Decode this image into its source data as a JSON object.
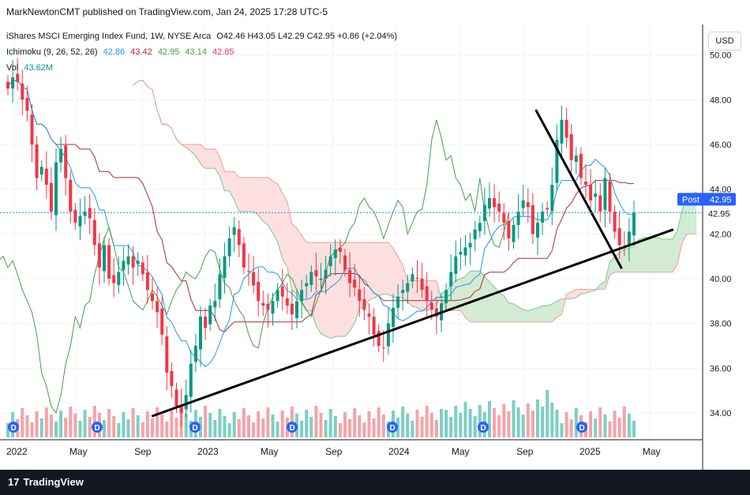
{
  "header": {
    "publisher_line": "MarkNewtonCMT published on TradingView.com, Jan 24, 2025 17:28 UTC-5"
  },
  "legend": {
    "symbol": "iShares MSCI Emerging Index Fund, 1W, NYSE Arca",
    "ohlc": "O42.46 H43.05 L42.29 C42.95 +0.86 (+2.04%)",
    "ichimoku_label": "Ichimoku (9, 26, 52, 26)",
    "ichimoku_values": [
      "42.86",
      "43.42",
      "42.95",
      "43.14",
      "42.85"
    ],
    "vol_label": "Vol",
    "vol_value": "43.62M"
  },
  "currency_button": "USD",
  "price_tag": {
    "label": "Post",
    "value": "42.95",
    "value2": "42.95"
  },
  "footer": {
    "brand": "TradingView",
    "mark": "17"
  },
  "dividend_marker": "D",
  "colors": {
    "bull": "#089981",
    "bear": "#f23645",
    "vol_bull": "#7dcfc3",
    "vol_bear": "#f5a3a8",
    "conversion": "#2196f3",
    "base": "#b22833",
    "lagging": "#43a047",
    "span_a": "#81c784",
    "span_b": "#ef9a9a",
    "cloud_green": "#c8e6c9",
    "cloud_red": "#fcd7d7",
    "trendline": "#000000",
    "tag": "#2962ff"
  },
  "chart_data": {
    "type": "candlestick",
    "timeframe": "1W",
    "x_tick_labels": [
      "2022",
      "May",
      "Sep",
      "2023",
      "May",
      "Sep",
      "2024",
      "May",
      "Sep",
      "2025",
      "May"
    ],
    "y_tick_labels": [
      "50.00",
      "48.00",
      "46.00",
      "44.00",
      "42.00",
      "40.00",
      "38.00",
      "36.00",
      "34.00"
    ],
    "ylim": [
      32.8,
      51.4
    ],
    "last_close": 42.95,
    "closes": [
      48.5,
      49.0,
      48.8,
      48.0,
      47.5,
      46.0,
      44.5,
      45.0,
      44.2,
      43.0,
      45.2,
      45.8,
      44.5,
      43.0,
      42.5,
      42.8,
      43.0,
      42.7,
      41.5,
      40.5,
      41.5,
      40.0,
      39.8,
      40.3,
      40.8,
      41.0,
      40.5,
      40.8,
      40.2,
      39.5,
      39.0,
      38.5,
      37.5,
      35.8,
      35.2,
      34.3,
      34.0,
      34.8,
      36.2,
      37.0,
      38.3,
      37.8,
      38.8,
      39.0,
      40.2,
      41.0,
      41.8,
      42.3,
      41.5,
      40.5,
      40.3,
      39.7,
      39.0,
      38.8,
      38.6,
      39.0,
      39.5,
      39.2,
      38.8,
      38.4,
      39.0,
      39.5,
      39.8,
      40.3,
      40.1,
      40.0,
      40.4,
      41.0,
      41.3,
      41.2,
      40.4,
      39.8,
      39.6,
      39.0,
      38.6,
      38.3,
      37.5,
      37.0,
      36.9,
      38.0,
      38.7,
      39.2,
      39.5,
      39.8,
      40.2,
      40.0,
      39.5,
      39.0,
      38.6,
      38.3,
      38.9,
      39.5,
      40.3,
      41.0,
      41.2,
      41.4,
      41.6,
      42.2,
      42.5,
      43.3,
      43.6,
      43.2,
      43.0,
      42.5,
      41.8,
      42.4,
      43.0,
      43.5,
      43.2,
      42.0,
      42.5,
      43.0,
      43.1,
      44.2,
      46.2,
      47.1,
      46.3,
      45.3,
      45.5,
      44.5,
      44.2,
      43.5,
      43.8,
      43.0,
      44.5,
      43.0,
      42.1,
      41.5,
      41.4,
      42.1,
      42.95
    ],
    "series": [
      {
        "name": "Vol",
        "unit": "M"
      }
    ],
    "annotations": [
      {
        "type": "trendline",
        "from": [
          2022.72,
          33.85
        ],
        "to": [
          2025.45,
          42.2
        ]
      },
      {
        "type": "trendline",
        "from": [
          2024.73,
          47.55
        ],
        "to": [
          2025.18,
          40.45
        ]
      }
    ]
  }
}
